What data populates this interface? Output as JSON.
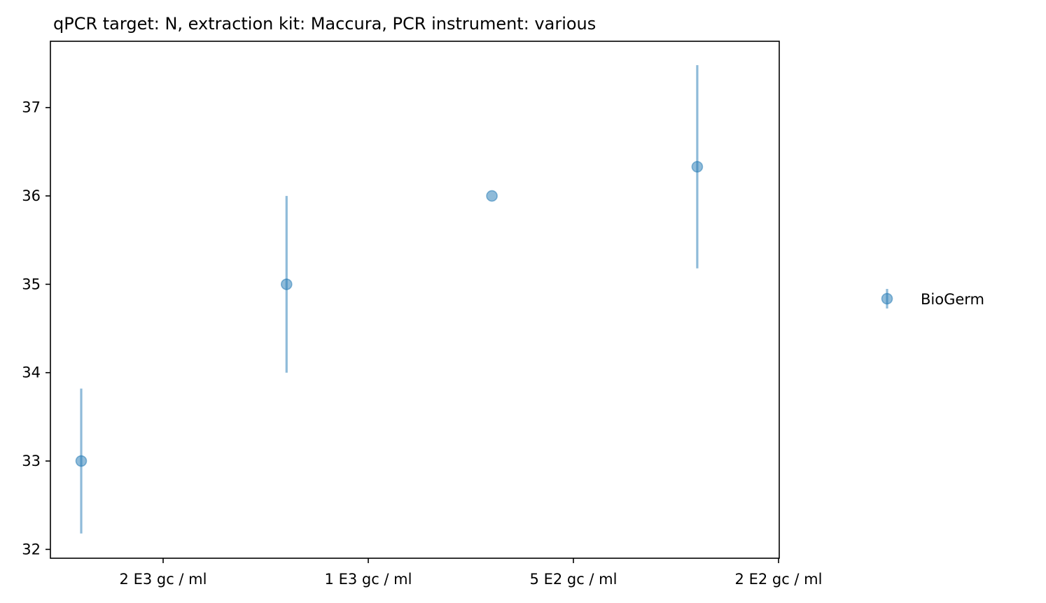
{
  "chart_data": {
    "type": "scatter",
    "title": "qPCR target: N, extraction kit: Maccura, PCR instrument: various",
    "xlabel": "",
    "ylabel": "",
    "categories": [
      "2 E3 gc / ml",
      "1 E3 gc / ml",
      "5 E2 gc / ml",
      "2 E2 gc / ml"
    ],
    "ylim": [
      31.9,
      37.75
    ],
    "y_ticks": [
      32,
      33,
      34,
      35,
      36,
      37
    ],
    "grid": false,
    "legend_position": "right",
    "series": [
      {
        "name": "BioGerm",
        "color": "#1f77b4",
        "points": [
          {
            "category_index": 0,
            "y": 33.0,
            "err_low": 32.18,
            "err_high": 33.82
          },
          {
            "category_index": 1,
            "y": 35.0,
            "err_low": 34.0,
            "err_high": 36.0
          },
          {
            "category_index": 2,
            "y": 36.0,
            "err_low": 36.0,
            "err_high": 36.0
          },
          {
            "category_index": 3,
            "y": 36.33,
            "err_low": 35.18,
            "err_high": 37.48
          }
        ]
      }
    ]
  }
}
